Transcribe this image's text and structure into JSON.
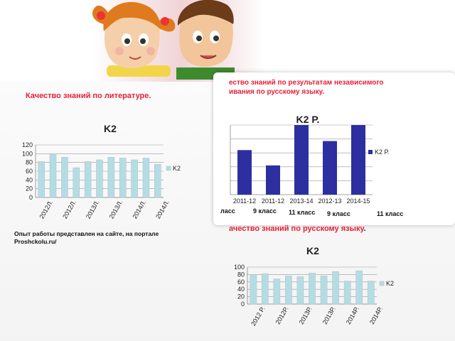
{
  "texts": {
    "literature_title": "Качество знаний по литературе.",
    "independent_title_line1": "ество знаний по результатам независимого",
    "independent_title_line2": "ивания по русскому языку.",
    "russian_title": "ачество знаний по русскому языку",
    "russian_title_tail": ".",
    "note_line1": "Опыт работы представлен на сайте, на портале",
    "note_line2": "Proshckolu.ru/",
    "grade_labels": [
      "ласс",
      "9 класс",
      "11 класс",
      "9 класс",
      "11 класс"
    ]
  },
  "colors": {
    "light_bar": "#b3dde5",
    "dark_bar": "#2d2fa0",
    "title_red": "#e3223a"
  },
  "illustrations": [
    "girl-with-pigtails",
    "boy-with-green-shirt"
  ],
  "chart_data": [
    {
      "type": "bar",
      "title": "K2",
      "legend": "right",
      "ylim": [
        0,
        120
      ],
      "yticks": [
        0,
        20,
        40,
        60,
        80,
        100,
        120
      ],
      "grid": true,
      "visible_tick_labels": [
        "2012Л.",
        "2012Л.",
        "2013Л.",
        "2013Л.",
        "2014Л.",
        "2014Л."
      ],
      "series": [
        {
          "name": "K2",
          "color": "#b3dde5",
          "values": [
            82,
            100,
            92,
            68,
            82,
            86,
            92,
            90,
            86,
            90,
            76
          ]
        }
      ]
    },
    {
      "type": "bar",
      "title": "K2 Р.",
      "legend": "right",
      "grid": true,
      "categories": [
        "2011-12",
        "2011-12",
        "2013-14",
        "2012-13",
        "2014-15"
      ],
      "series": [
        {
          "name": "K2 Р.",
          "color": "#2d2fa0",
          "values": [
            64,
            42,
            100,
            77,
            100
          ]
        }
      ]
    },
    {
      "type": "bar",
      "title": "K2",
      "legend": "right",
      "ylim": [
        0,
        100
      ],
      "yticks": [
        0,
        20,
        40,
        60,
        80,
        100
      ],
      "grid": true,
      "visible_tick_labels": [
        "2012 Р.",
        "2012Р.",
        "2013Р.",
        "2013Р.",
        "2014Р.",
        "2014Р."
      ],
      "series": [
        {
          "name": "K2",
          "color": "#b3dde5",
          "values": [
            80,
            82,
            68,
            76,
            74,
            84,
            76,
            88,
            62,
            90,
            62
          ]
        }
      ]
    }
  ]
}
